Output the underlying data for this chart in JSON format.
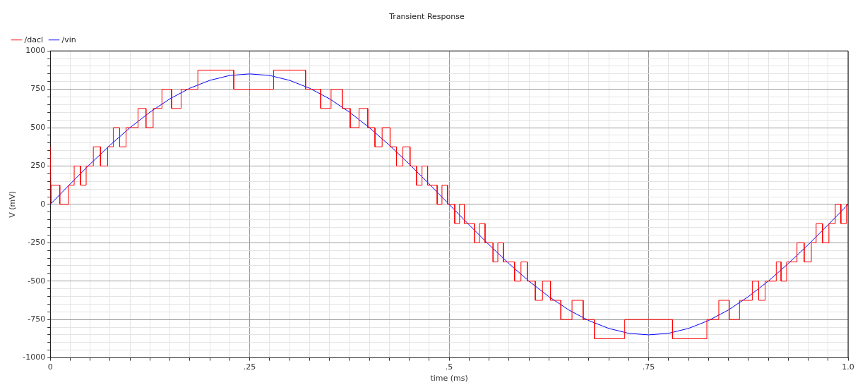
{
  "chart_data": {
    "type": "line",
    "title": "Transient Response",
    "xlabel": "time (ms)",
    "ylabel": "V (mV)",
    "legend": "top left",
    "grid": true,
    "marker": "none",
    "line_style": "solid",
    "xlim": [
      0,
      1
    ],
    "ylim": [
      -1000,
      1000
    ],
    "xticks": [
      0,
      {
        "value": 0.025,
        "label": null
      },
      {
        "value": 0.05,
        "label": null
      },
      {
        "value": 0.075,
        "label": null
      },
      {
        "value": 0.1,
        "label": null
      },
      {
        "value": 0.125,
        "label": null
      },
      {
        "value": 0.15,
        "label": null
      },
      {
        "value": 0.175,
        "label": null
      },
      {
        "value": 0.2,
        "label": null
      },
      {
        "value": 0.225,
        "label": null
      },
      {
        "value": 0.25,
        "label": ".25"
      },
      {
        "value": 0.275,
        "label": null
      },
      {
        "value": 0.3,
        "label": null
      },
      {
        "value": 0.325,
        "label": null
      },
      {
        "value": 0.35,
        "label": null
      },
      {
        "value": 0.375,
        "label": null
      },
      {
        "value": 0.4,
        "label": null
      },
      {
        "value": 0.425,
        "label": null
      },
      {
        "value": 0.45,
        "label": null
      },
      {
        "value": 0.475,
        "label": null
      },
      {
        "value": 0.5,
        "label": ".5"
      },
      {
        "value": 0.525,
        "label": null
      },
      {
        "value": 0.55,
        "label": null
      },
      {
        "value": 0.575,
        "label": null
      },
      {
        "value": 0.6,
        "label": null
      },
      {
        "value": 0.625,
        "label": null
      },
      {
        "value": 0.65,
        "label": null
      },
      {
        "value": 0.675,
        "label": null
      },
      {
        "value": 0.7,
        "label": null
      },
      {
        "value": 0.725,
        "label": null
      },
      {
        "value": 0.75,
        "label": ".75"
      },
      {
        "value": 0.775,
        "label": null
      },
      {
        "value": 0.8,
        "label": null
      },
      {
        "value": 0.825,
        "label": null
      },
      {
        "value": 0.85,
        "label": null
      },
      {
        "value": 0.875,
        "label": null
      },
      {
        "value": 0.9,
        "label": null
      },
      {
        "value": 0.925,
        "label": null
      },
      {
        "value": 0.95,
        "label": null
      },
      {
        "value": 0.975,
        "label": null
      },
      {
        "value": 1,
        "label": "1.0"
      }
    ],
    "yticks": [
      -1000,
      {
        "value": -950,
        "label": null
      },
      {
        "value": -900,
        "label": null
      },
      {
        "value": -850,
        "label": null
      },
      {
        "value": -800,
        "label": null
      },
      -750,
      {
        "value": -700,
        "label": null
      },
      {
        "value": -650,
        "label": null
      },
      {
        "value": -600,
        "label": null
      },
      {
        "value": -550,
        "label": null
      },
      -500,
      {
        "value": -450,
        "label": null
      },
      {
        "value": -400,
        "label": null
      },
      {
        "value": -350,
        "label": null
      },
      {
        "value": -300,
        "label": null
      },
      -250,
      {
        "value": -200,
        "label": null
      },
      {
        "value": -150,
        "label": null
      },
      {
        "value": -100,
        "label": null
      },
      {
        "value": -50,
        "label": null
      },
      0,
      {
        "value": 50,
        "label": null
      },
      {
        "value": 100,
        "label": null
      },
      {
        "value": 150,
        "label": null
      },
      {
        "value": 200,
        "label": null
      },
      250,
      {
        "value": 300,
        "label": null
      },
      {
        "value": 350,
        "label": null
      },
      {
        "value": 400,
        "label": null
      },
      {
        "value": 450,
        "label": null
      },
      500,
      {
        "value": 550,
        "label": null
      },
      {
        "value": 600,
        "label": null
      },
      {
        "value": 650,
        "label": null
      },
      {
        "value": 700,
        "label": null
      },
      750,
      {
        "value": 800,
        "label": null
      },
      {
        "value": 850,
        "label": null
      },
      {
        "value": 900,
        "label": null
      },
      {
        "value": 950,
        "label": null
      },
      1000
    ],
    "series": [
      {
        "name": "/dacl",
        "color": "#ff0000",
        "x": [
          0,
          0.001,
          0.001,
          0.001,
          0.012,
          0.012,
          0.023,
          0.023,
          0.03,
          0.03,
          0.038,
          0.038,
          0.045,
          0.045,
          0.054,
          0.054,
          0.063,
          0.063,
          0.072,
          0.072,
          0.079,
          0.079,
          0.087,
          0.087,
          0.095,
          0.095,
          0.11,
          0.11,
          0.12,
          0.12,
          0.129,
          0.129,
          0.14,
          0.14,
          0.152,
          0.152,
          0.164,
          0.164,
          0.185,
          0.185,
          0.23,
          0.23,
          0.28,
          0.28,
          0.32,
          0.32,
          0.339,
          0.339,
          0.352,
          0.352,
          0.366,
          0.366,
          0.376,
          0.376,
          0.387,
          0.387,
          0.398,
          0.398,
          0.407,
          0.407,
          0.416,
          0.416,
          0.426,
          0.426,
          0.434,
          0.434,
          0.442,
          0.442,
          0.451,
          0.451,
          0.459,
          0.459,
          0.466,
          0.466,
          0.473,
          0.473,
          0.485,
          0.485,
          0.491,
          0.491,
          0.498,
          0.498,
          0.507,
          0.507,
          0.513,
          0.513,
          0.519,
          0.519,
          0.532,
          0.532,
          0.538,
          0.538,
          0.545,
          0.545,
          0.555,
          0.555,
          0.561,
          0.561,
          0.568,
          0.568,
          0.582,
          0.582,
          0.59,
          0.59,
          0.598,
          0.598,
          0.608,
          0.608,
          0.617,
          0.617,
          0.627,
          0.627,
          0.64,
          0.64,
          0.654,
          0.654,
          0.668,
          0.668,
          0.682,
          0.682,
          0.72,
          0.72,
          0.78,
          0.78,
          0.823,
          0.823,
          0.838,
          0.838,
          0.851,
          0.851,
          0.864,
          0.864,
          0.88,
          0.88,
          0.888,
          0.888,
          0.896,
          0.896,
          0.91,
          0.91,
          0.916,
          0.916,
          0.923,
          0.923,
          0.936,
          0.936,
          0.945,
          0.945,
          0.954,
          0.954,
          0.96,
          0.96,
          0.968,
          0.968,
          0.976,
          0.976,
          0.984,
          0.984,
          0.991,
          0.991,
          0.998,
          0.998,
          1
        ],
        "values": [
          375,
          0,
          0,
          125,
          125,
          0,
          0,
          125,
          125,
          250,
          250,
          125,
          125,
          250,
          250,
          375,
          375,
          250,
          250,
          375,
          375,
          500,
          500,
          375,
          375,
          500,
          500,
          625,
          625,
          500,
          500,
          625,
          625,
          750,
          750,
          625,
          625,
          750,
          750,
          875,
          875,
          750,
          750,
          875,
          875,
          750,
          750,
          625,
          625,
          750,
          750,
          625,
          625,
          500,
          500,
          625,
          625,
          500,
          500,
          375,
          375,
          500,
          500,
          375,
          375,
          250,
          250,
          375,
          375,
          250,
          250,
          125,
          125,
          250,
          250,
          125,
          125,
          0,
          0,
          125,
          125,
          0,
          0,
          -125,
          -125,
          0,
          0,
          -125,
          -125,
          -250,
          -250,
          -125,
          -125,
          -250,
          -250,
          -375,
          -375,
          -250,
          -250,
          -375,
          -375,
          -500,
          -500,
          -375,
          -375,
          -500,
          -500,
          -625,
          -625,
          -500,
          -500,
          -625,
          -625,
          -750,
          -750,
          -625,
          -625,
          -750,
          -750,
          -875,
          -875,
          -750,
          -750,
          -875,
          -875,
          -750,
          -750,
          -625,
          -625,
          -750,
          -750,
          -625,
          -625,
          -500,
          -500,
          -625,
          -625,
          -500,
          -500,
          -375,
          -375,
          -500,
          -500,
          -375,
          -375,
          -250,
          -250,
          -375,
          -375,
          -250,
          -250,
          -125,
          -125,
          -250,
          -250,
          -125,
          -125,
          0,
          0,
          -125,
          -125,
          0,
          0
        ]
      },
      {
        "name": "/vin",
        "color": "#0000ff",
        "x": [
          0,
          0.025,
          0.05,
          0.075,
          0.1,
          0.125,
          0.15,
          0.175,
          0.2,
          0.225,
          0.25,
          0.275,
          0.3,
          0.325,
          0.35,
          0.375,
          0.4,
          0.425,
          0.45,
          0.475,
          0.5,
          0.525,
          0.55,
          0.575,
          0.6,
          0.625,
          0.65,
          0.675,
          0.7,
          0.725,
          0.75,
          0.775,
          0.8,
          0.825,
          0.85,
          0.875,
          0.9,
          0.925,
          0.95,
          0.975,
          1
        ],
        "values": [
          0,
          133,
          263,
          386,
          500,
          601,
          688,
          757,
          808,
          840,
          850,
          840,
          808,
          757,
          688,
          601,
          500,
          386,
          263,
          133,
          0,
          -133,
          -263,
          -386,
          -500,
          -601,
          -688,
          -757,
          -808,
          -840,
          -850,
          -840,
          -808,
          -757,
          -688,
          -601,
          -500,
          -386,
          -263,
          -133,
          0
        ]
      }
    ]
  }
}
